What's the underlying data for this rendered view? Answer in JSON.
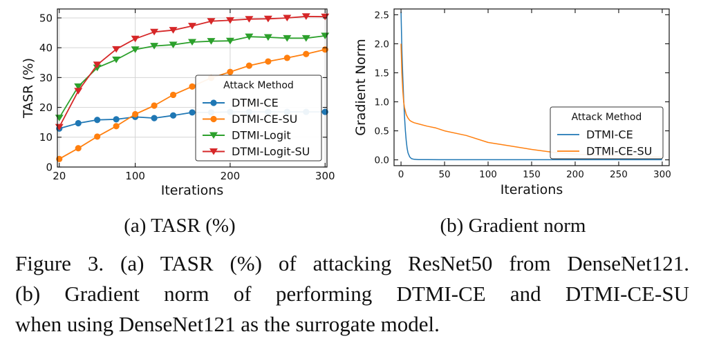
{
  "chart_data": [
    {
      "type": "line",
      "panel_caption": "(a) TASR (%)",
      "xlabel": "Iterations",
      "ylabel": "TASR (%)",
      "xlim": [
        18,
        302
      ],
      "ylim": [
        0,
        53
      ],
      "xticks": [
        20,
        100,
        200,
        300
      ],
      "yticks": [
        0,
        10,
        20,
        30,
        40,
        50
      ],
      "grid": true,
      "legend_title": "Attack Method",
      "legend_position": "center-right",
      "x": [
        20,
        40,
        60,
        80,
        100,
        120,
        140,
        160,
        180,
        200,
        220,
        240,
        260,
        280,
        300
      ],
      "series": [
        {
          "name": "DTMI-CE",
          "color": "#1f77b4",
          "marker": "circle",
          "values": [
            12.9,
            14.7,
            15.8,
            16.0,
            16.8,
            16.4,
            17.3,
            18.3,
            18.3,
            18.5,
            18.5,
            18.5,
            18.5,
            18.5,
            18.5
          ]
        },
        {
          "name": "DTMI-CE-SU",
          "color": "#ff7f0e",
          "marker": "circle",
          "values": [
            2.7,
            6.3,
            10.2,
            13.7,
            17.7,
            20.6,
            24.2,
            27.0,
            29.9,
            31.9,
            34.0,
            35.4,
            36.6,
            37.9,
            39.4
          ]
        },
        {
          "name": "DTMI-Logit",
          "color": "#2ca02c",
          "marker": "triangle-down",
          "values": [
            16.5,
            27.0,
            33.3,
            36.0,
            39.4,
            40.6,
            41.0,
            41.9,
            42.2,
            42.3,
            43.7,
            43.5,
            43.2,
            43.2,
            44.0
          ]
        },
        {
          "name": "DTMI-Logit-SU",
          "color": "#d62728",
          "marker": "triangle-down",
          "values": [
            13.4,
            25.5,
            34.3,
            39.5,
            43.0,
            45.3,
            45.9,
            47.3,
            48.9,
            49.2,
            49.6,
            49.7,
            50.0,
            50.5,
            50.4
          ]
        }
      ]
    },
    {
      "type": "line",
      "panel_caption": "(b) Gradient norm",
      "xlabel": "Iterations",
      "ylabel": "Gradient Norm",
      "xlim": [
        -8,
        308
      ],
      "ylim": [
        -0.1,
        2.6
      ],
      "xticks": [
        0,
        50,
        100,
        150,
        200,
        250,
        300
      ],
      "yticks": [
        0.0,
        0.5,
        1.0,
        1.5,
        2.0,
        2.5
      ],
      "xtick_labels": [
        "0",
        "50",
        "100",
        "150",
        "200",
        "250",
        "300"
      ],
      "ytick_labels": [
        "0.0",
        "0.5",
        "1.0",
        "1.5",
        "2.0",
        "2.5"
      ],
      "grid": false,
      "legend_title": "Attack Method",
      "legend_position": "lower-right",
      "series": [
        {
          "name": "DTMI-CE",
          "color": "#1f77b4",
          "x": [
            0,
            1,
            2,
            3,
            4,
            5,
            6,
            7,
            8,
            10,
            12,
            15,
            20,
            30,
            50,
            100,
            150,
            200,
            250,
            300
          ],
          "values": [
            2.55,
            1.9,
            1.45,
            1.05,
            0.75,
            0.5,
            0.33,
            0.2,
            0.12,
            0.05,
            0.02,
            0.01,
            0.005,
            0.003,
            0.002,
            0.002,
            0.002,
            0.002,
            0.002,
            0.002
          ]
        },
        {
          "name": "DTMI-CE-SU",
          "color": "#ff7f0e",
          "x": [
            0,
            1,
            2,
            3,
            4,
            6,
            8,
            10,
            12,
            15,
            20,
            30,
            40,
            50,
            75,
            100,
            125,
            150,
            175,
            200,
            225,
            250,
            275,
            300
          ],
          "values": [
            2.0,
            1.5,
            1.2,
            1.0,
            0.9,
            0.78,
            0.72,
            0.68,
            0.66,
            0.64,
            0.62,
            0.58,
            0.55,
            0.5,
            0.42,
            0.3,
            0.24,
            0.18,
            0.13,
            0.1,
            0.08,
            0.07,
            0.06,
            0.05
          ]
        }
      ]
    }
  ],
  "caption": {
    "line1": "Figure 3. (a) TASR (%) of attacking ResNet50 from DenseNet121.",
    "line2": "(b) Gradient norm of performing DTMI-CE and DTMI-CE-SU",
    "line3": "when using DenseNet121 as the surrogate model."
  }
}
